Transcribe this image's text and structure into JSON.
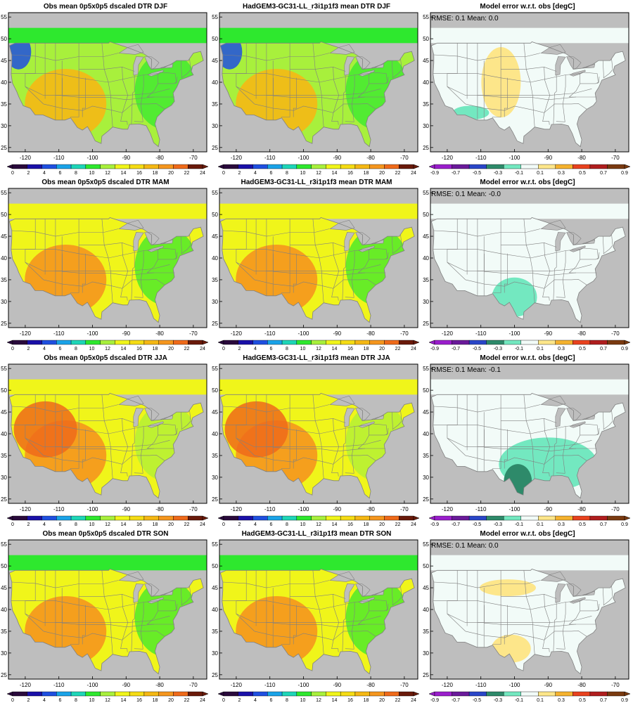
{
  "panels": [
    {
      "title": "Obs mean 0p5x0p5 dscaled DTR DJF",
      "kind": "abs",
      "season": "DJF"
    },
    {
      "title": "HadGEM3-GC31-LL_r3i1p1f3 mean DTR DJF",
      "kind": "abs",
      "season": "DJF"
    },
    {
      "title": "Model error w.r.t. obs [degC]",
      "kind": "err",
      "season": "DJF",
      "stats": "RMSE: 0.1   Mean: 0.0"
    },
    {
      "title": "Obs mean 0p5x0p5 dscaled DTR MAM",
      "kind": "abs",
      "season": "MAM"
    },
    {
      "title": "HadGEM3-GC31-LL_r3i1p1f3 mean DTR MAM",
      "kind": "abs",
      "season": "MAM"
    },
    {
      "title": "Model error w.r.t. obs [degC]",
      "kind": "err",
      "season": "MAM",
      "stats": "RMSE: 0.1   Mean: -0.0"
    },
    {
      "title": "Obs mean 0p5x0p5 dscaled DTR JJA",
      "kind": "abs",
      "season": "JJA"
    },
    {
      "title": "HadGEM3-GC31-LL_r3i1p1f3 mean DTR JJA",
      "kind": "abs",
      "season": "JJA"
    },
    {
      "title": "Model error w.r.t. obs [degC]",
      "kind": "err",
      "season": "JJA",
      "stats": "RMSE: 0.1   Mean: -0.1"
    },
    {
      "title": "Obs mean 0p5x0p5 dscaled DTR SON",
      "kind": "abs",
      "season": "SON"
    },
    {
      "title": "HadGEM3-GC31-LL_r3i1p1f3 mean DTR SON",
      "kind": "abs",
      "season": "SON"
    },
    {
      "title": "Model error w.r.t. obs [degC]",
      "kind": "err",
      "season": "SON",
      "stats": "RMSE: 0.1   Mean: 0.0"
    }
  ],
  "map_axes": {
    "lon_ticks": [
      "-120",
      "-110",
      "-100",
      "-90",
      "-80",
      "-70"
    ],
    "lat_ticks": [
      "25",
      "30",
      "35",
      "40",
      "45",
      "50",
      "55"
    ],
    "lon_range": [
      -125,
      -66
    ],
    "lat_range": [
      24,
      56
    ]
  },
  "colorbars": {
    "abs": {
      "labels": [
        "0",
        "2",
        "4",
        "6",
        "8",
        "10",
        "12",
        "14",
        "16",
        "18",
        "20",
        "22",
        "24"
      ],
      "colors": [
        "#2a0a3c",
        "#1a10a8",
        "#1f4fe0",
        "#1aa3e8",
        "#1ed6b8",
        "#2ee82e",
        "#a8f03c",
        "#f0f51a",
        "#f5dc14",
        "#f5b814",
        "#f5961e",
        "#ef6a1a",
        "#6a1a0a"
      ]
    },
    "err": {
      "labels": [
        "-0.9",
        "-0.7",
        "-0.5",
        "-0.3",
        "-0.1",
        "0.1",
        "0.3",
        "0.5",
        "0.7",
        "0.9"
      ],
      "colors": [
        "#9a1ecc",
        "#6a1a9a",
        "#2a46c8",
        "#2e8a6a",
        "#73e8c0",
        "#f2fbf8",
        "#fde68a",
        "#f5b22e",
        "#e8421e",
        "#b01e1e",
        "#7a3a10"
      ]
    }
  },
  "colors": {
    "land_low": "#2ee82e",
    "land_mid": "#f0f51a",
    "land_high": "#f5961e",
    "missing": "#bebebe",
    "err_neutral": "#f2fbf8",
    "err_neg": "#73e8c0",
    "err_pos": "#fde68a",
    "border": "#808080"
  }
}
